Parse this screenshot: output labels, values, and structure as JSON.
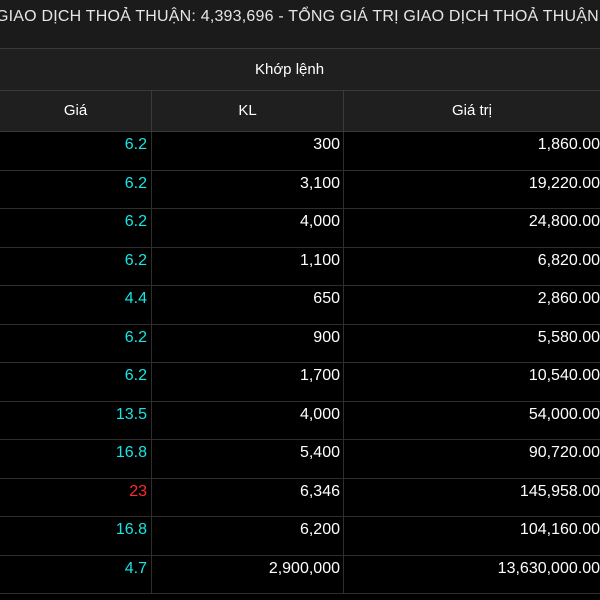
{
  "ticker": {
    "text": "GIAO DỊCH THOẢ THUẬN: 4,393,696  -  TỔNG GIÁ TRỊ GIAO DỊCH THOẢ THUẬN"
  },
  "section": {
    "title": "Khớp lệnh"
  },
  "columns": {
    "price": "Giá",
    "volume": "KL",
    "value": "Giá trị"
  },
  "colors": {
    "cyan": "#17e6e6",
    "red": "#ff2a2a"
  },
  "rows": [
    {
      "price": "6.2",
      "volume": "300",
      "value": "1,860.00",
      "price_color": "cyan"
    },
    {
      "price": "6.2",
      "volume": "3,100",
      "value": "19,220.00",
      "price_color": "cyan"
    },
    {
      "price": "6.2",
      "volume": "4,000",
      "value": "24,800.00",
      "price_color": "cyan"
    },
    {
      "price": "6.2",
      "volume": "1,100",
      "value": "6,820.00",
      "price_color": "cyan"
    },
    {
      "price": "4.4",
      "volume": "650",
      "value": "2,860.00",
      "price_color": "cyan"
    },
    {
      "price": "6.2",
      "volume": "900",
      "value": "5,580.00",
      "price_color": "cyan"
    },
    {
      "price": "6.2",
      "volume": "1,700",
      "value": "10,540.00",
      "price_color": "cyan"
    },
    {
      "price": "13.5",
      "volume": "4,000",
      "value": "54,000.00",
      "price_color": "cyan"
    },
    {
      "price": "16.8",
      "volume": "5,400",
      "value": "90,720.00",
      "price_color": "cyan"
    },
    {
      "price": "23",
      "volume": "6,346",
      "value": "145,958.00",
      "price_color": "red"
    },
    {
      "price": "16.8",
      "volume": "6,200",
      "value": "104,160.00",
      "price_color": "cyan"
    },
    {
      "price": "4.7",
      "volume": "2,900,000",
      "value": "13,630,000.00",
      "price_color": "cyan"
    }
  ]
}
